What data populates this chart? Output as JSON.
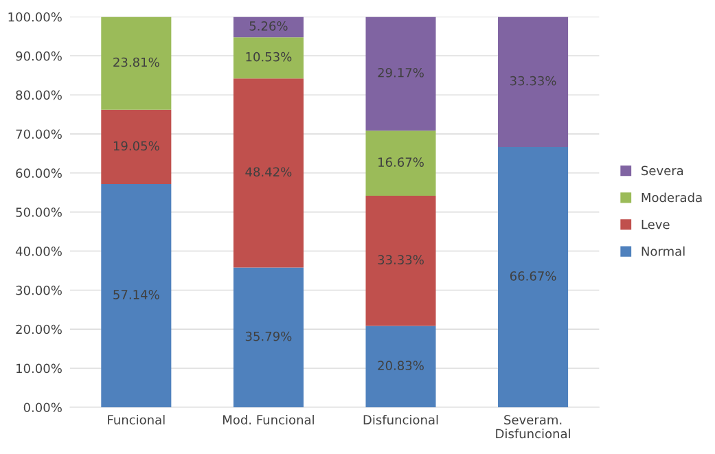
{
  "chart_data": {
    "type": "bar",
    "stacked": true,
    "categories": [
      "Funcional",
      "Mod. Funcional",
      "Disfuncional",
      "Severam.\nDisfuncional"
    ],
    "series": [
      {
        "name": "Normal",
        "color": "#4f81bd",
        "values": [
          57.14,
          35.79,
          20.83,
          66.67
        ],
        "value_labels": [
          "57.14%",
          "35.79%",
          "20.83%",
          "66.67%"
        ]
      },
      {
        "name": "Leve",
        "color": "#c0504d",
        "values": [
          19.05,
          48.42,
          33.33,
          0
        ],
        "value_labels": [
          "19.05%",
          "48.42%",
          "33.33%",
          null
        ]
      },
      {
        "name": "Moderada",
        "color": "#9bbb59",
        "values": [
          23.81,
          10.53,
          16.67,
          0
        ],
        "value_labels": [
          "23.81%",
          "10.53%",
          "16.67%",
          null
        ]
      },
      {
        "name": "Severa",
        "color": "#8064a2",
        "values": [
          0,
          5.26,
          29.17,
          33.33
        ],
        "value_labels": [
          null,
          "5.26%",
          "29.17%",
          "33.33%"
        ]
      }
    ],
    "ylim": [
      0,
      100
    ],
    "yticks": [
      {
        "value": 0,
        "label": "0.00%"
      },
      {
        "value": 10,
        "label": "10.00%"
      },
      {
        "value": 20,
        "label": "20.00%"
      },
      {
        "value": 30,
        "label": "30.00%"
      },
      {
        "value": 40,
        "label": "40.00%"
      },
      {
        "value": 50,
        "label": "50.00%"
      },
      {
        "value": 60,
        "label": "60.00%"
      },
      {
        "value": 70,
        "label": "70.00%"
      },
      {
        "value": 80,
        "label": "80.00%"
      },
      {
        "value": 90,
        "label": "90.00%"
      },
      {
        "value": 100,
        "label": "100.00%"
      }
    ],
    "grid": "y",
    "legend": "right"
  }
}
